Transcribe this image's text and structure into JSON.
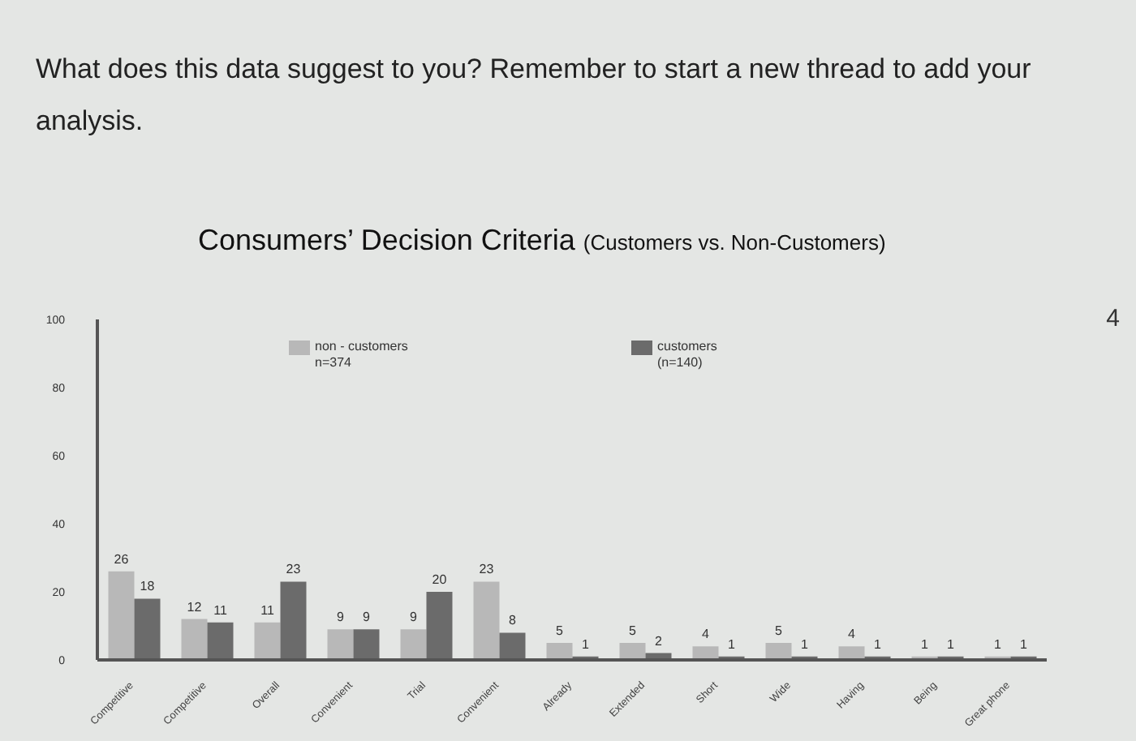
{
  "chart_data": {
    "type": "bar",
    "title": "Consumers’ Decision Criteria",
    "subtitle": "(Customers vs. Non-Customers)",
    "annotations": [
      "What does this data suggest to you? Remember to start a new thread to add your analysis.",
      "4"
    ],
    "categories": [
      "Competitive",
      "Competitive",
      "Overall",
      "Convenient",
      "Trial",
      "Convenient",
      "Already",
      "Extended",
      "Short",
      "Wide",
      "Having",
      "Being",
      "Great phone"
    ],
    "series": [
      {
        "name": "non - customers n=374",
        "color": "#b8b8b8",
        "values": [
          26,
          12,
          11,
          9,
          9,
          23,
          5,
          5,
          4,
          5,
          4,
          1,
          1
        ]
      },
      {
        "name": "customers (n=140)",
        "color": "#6b6b6b",
        "values": [
          18,
          11,
          23,
          9,
          20,
          8,
          1,
          2,
          1,
          1,
          1,
          1,
          1
        ]
      }
    ],
    "ylim": [
      0,
      100
    ],
    "yticks": [
      0,
      20,
      40,
      60,
      80,
      100
    ],
    "legend": "top",
    "data_labels": true
  }
}
